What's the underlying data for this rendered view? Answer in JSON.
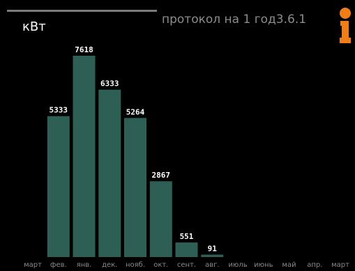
{
  "header": {
    "title": "протокол на 1 год",
    "menu_number": "3.6.1",
    "info_icon": "info-icon",
    "colors": {
      "accent": "#f07d16",
      "bar": "#2e5f55",
      "background": "#000000"
    }
  },
  "chart_data": {
    "type": "bar",
    "ylabel": "кВт",
    "categories": [
      "март",
      "фев.",
      "янв.",
      "дек.",
      "нояб.",
      "окт.",
      "сент.",
      "авг.",
      "июль",
      "июнь",
      "май",
      "апр.",
      "март"
    ],
    "values": [
      null,
      5333,
      7618,
      6333,
      5264,
      2867,
      551,
      91,
      null,
      null,
      null,
      null,
      null
    ],
    "value_labels": [
      "",
      "5333",
      "7618",
      "6333",
      "5264",
      "2867",
      "551",
      "91",
      "",
      "",
      "",
      "",
      ""
    ],
    "ylim": [
      0,
      7618
    ],
    "grid": false,
    "legend": "none"
  }
}
